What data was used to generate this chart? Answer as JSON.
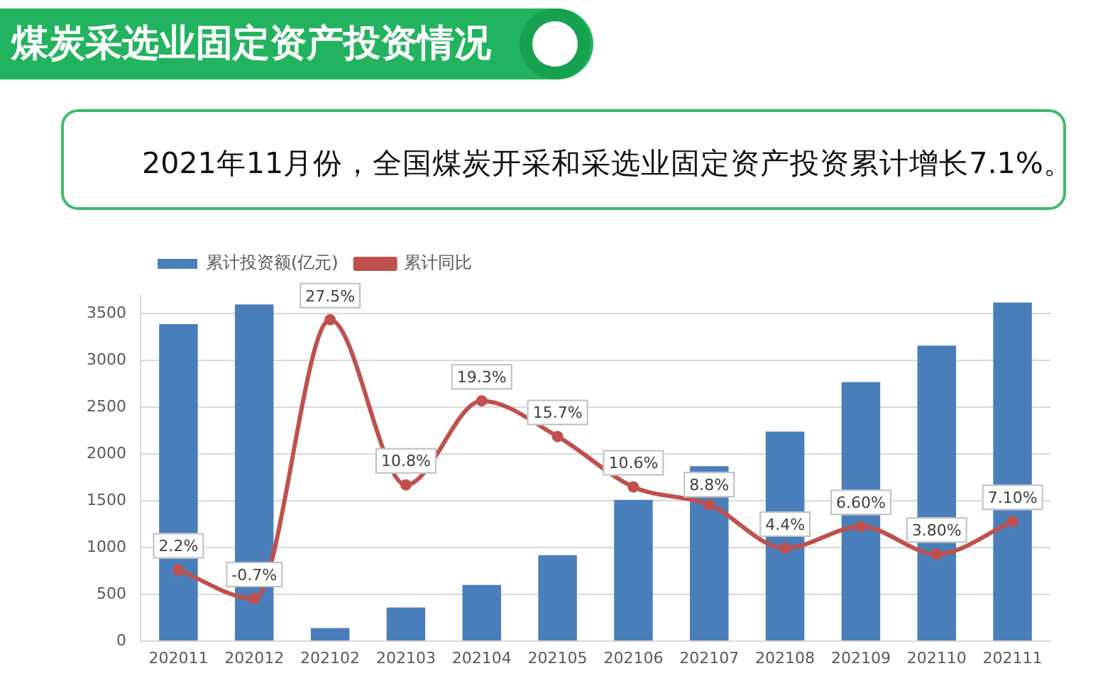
{
  "chart_data": {
    "type": "bar",
    "title": "煤炭采选业固定资产投资情况",
    "subtitle": "2021年11月份，全国煤炭开采和采选业固定资产投资累计增长7.1%。",
    "categories": [
      "202011",
      "202012",
      "202102",
      "202103",
      "202104",
      "202105",
      "202106",
      "202107",
      "202108",
      "202109",
      "202110",
      "202111"
    ],
    "series": [
      {
        "name": "累计投资额(亿元)",
        "color": "#4a7ebb",
        "values": [
          3390,
          3600,
          140,
          360,
          600,
          920,
          1510,
          1870,
          2240,
          2770,
          3160,
          3620
        ]
      },
      {
        "name": "累计同比",
        "type": "line",
        "axis": "y2",
        "color": "#c0504d",
        "values": [
          2.2,
          -0.7,
          27.5,
          10.8,
          19.3,
          15.7,
          10.6,
          8.8,
          4.4,
          6.6,
          3.8,
          7.1
        ],
        "value_labels": [
          "2.2%",
          "-0.7%",
          "27.5%",
          "10.8%",
          "19.3%",
          "15.7%",
          "10.6%",
          "8.8%",
          "4.4%",
          "6.60%",
          "3.80%",
          "7.10%"
        ]
      }
    ],
    "ylim": [
      0,
      3700
    ],
    "yticks": [
      0,
      500,
      1000,
      1500,
      2000,
      2500,
      3000,
      3500
    ],
    "y2lim": [
      -5,
      30
    ],
    "grid": "y",
    "legend": "top left",
    "marker": "circle",
    "line_style": "solid"
  }
}
